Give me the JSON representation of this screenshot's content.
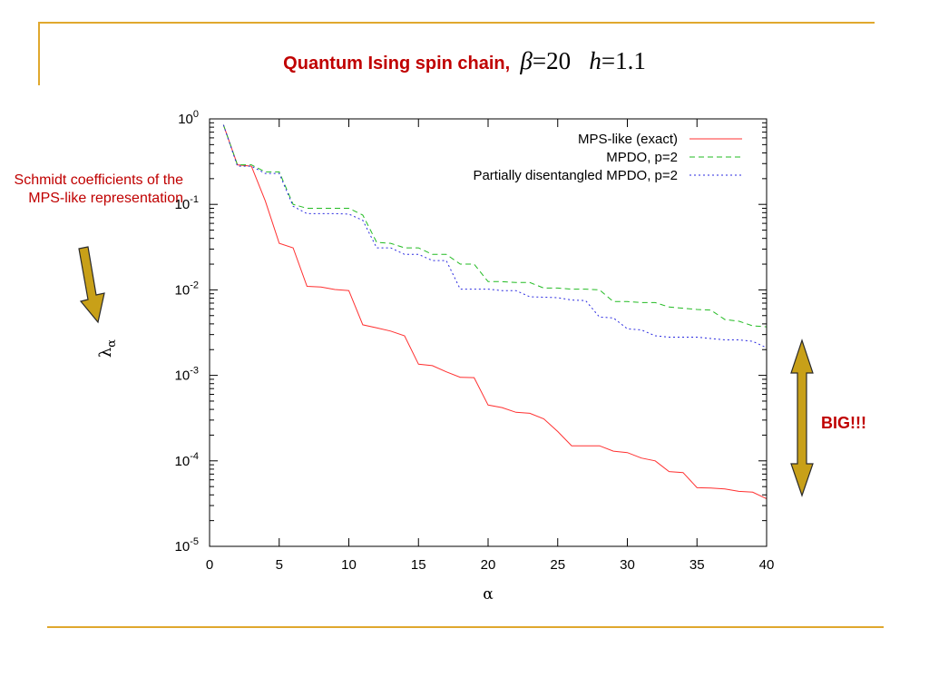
{
  "slide": {
    "title": "Quantum Ising spin chain,",
    "beta_symbol": "β",
    "beta_eq": "=20",
    "h_symbol": "h",
    "h_eq": "=1.1",
    "annotation_left": "Schmidt coefficients of the MPS-like representation",
    "annotation_right": "BIG!!!",
    "colors": {
      "accent": "#c00000",
      "rule": "#e0a82e",
      "arrow": "#c8a018"
    },
    "icons": [
      "arrow-down-icon",
      "double-arrow-icon"
    ]
  },
  "chart_data": {
    "type": "line",
    "xlabel": "α",
    "ylabel": "λ",
    "ylabel_sub": "α",
    "xlim": [
      0,
      40
    ],
    "ylim": [
      1e-05,
      1
    ],
    "yscale": "log",
    "xticks": [
      "0",
      "5",
      "10",
      "15",
      "20",
      "25",
      "30",
      "35",
      "40"
    ],
    "yticks": [
      {
        "base": "10",
        "exp": "0"
      },
      {
        "base": "10",
        "exp": "-1"
      },
      {
        "base": "10",
        "exp": "-2"
      },
      {
        "base": "10",
        "exp": "-3"
      },
      {
        "base": "10",
        "exp": "-4"
      },
      {
        "base": "10",
        "exp": "-5"
      }
    ],
    "legend_position": "top-right",
    "x": [
      1,
      2,
      3,
      4,
      5,
      6,
      7,
      8,
      9,
      10,
      11,
      12,
      13,
      14,
      15,
      16,
      17,
      18,
      19,
      20,
      21,
      22,
      23,
      24,
      25,
      26,
      27,
      28,
      29,
      30,
      31,
      32,
      33,
      34,
      35,
      36,
      37,
      38,
      39,
      40
    ],
    "series": [
      {
        "name": "MPS-like (exact)",
        "color": "#ff3030",
        "dash": "solid",
        "values": [
          0.85,
          0.29,
          0.28,
          0.11,
          0.035,
          0.031,
          0.011,
          0.0108,
          0.0101,
          0.0098,
          0.0039,
          0.0036,
          0.0033,
          0.0029,
          0.00135,
          0.0013,
          0.0011,
          0.00095,
          0.00094,
          0.00045,
          0.00042,
          0.00037,
          0.00036,
          0.00031,
          0.00022,
          0.00015,
          0.00015,
          0.00015,
          0.00013,
          0.000125,
          0.000108,
          0.0001,
          7.5e-05,
          7.3e-05,
          4.85e-05,
          4.8e-05,
          4.7e-05,
          4.4e-05,
          4.3e-05,
          3.6e-05
        ]
      },
      {
        "name": "MPDO, p=2",
        "color": "#22bb22",
        "dash": "6,4",
        "values": [
          0.85,
          0.29,
          0.29,
          0.24,
          0.24,
          0.1,
          0.09,
          0.09,
          0.09,
          0.09,
          0.075,
          0.036,
          0.035,
          0.031,
          0.031,
          0.026,
          0.026,
          0.02,
          0.02,
          0.0125,
          0.0125,
          0.0122,
          0.0122,
          0.0105,
          0.0105,
          0.0102,
          0.0102,
          0.01,
          0.0073,
          0.0073,
          0.0071,
          0.0071,
          0.0063,
          0.0061,
          0.0059,
          0.0058,
          0.0045,
          0.0043,
          0.0038,
          0.0037
        ]
      },
      {
        "name": "Partially disentangled MPDO, p=2",
        "color": "#2a2ae0",
        "dash": "2,3",
        "values": [
          0.85,
          0.28,
          0.28,
          0.23,
          0.23,
          0.095,
          0.078,
          0.078,
          0.078,
          0.077,
          0.065,
          0.031,
          0.031,
          0.026,
          0.026,
          0.022,
          0.022,
          0.0102,
          0.0102,
          0.0102,
          0.0098,
          0.0098,
          0.0083,
          0.0082,
          0.0081,
          0.0076,
          0.0075,
          0.0048,
          0.0047,
          0.0035,
          0.0034,
          0.0029,
          0.0028,
          0.0028,
          0.0028,
          0.0027,
          0.0026,
          0.0026,
          0.0025,
          0.0021
        ]
      }
    ]
  }
}
